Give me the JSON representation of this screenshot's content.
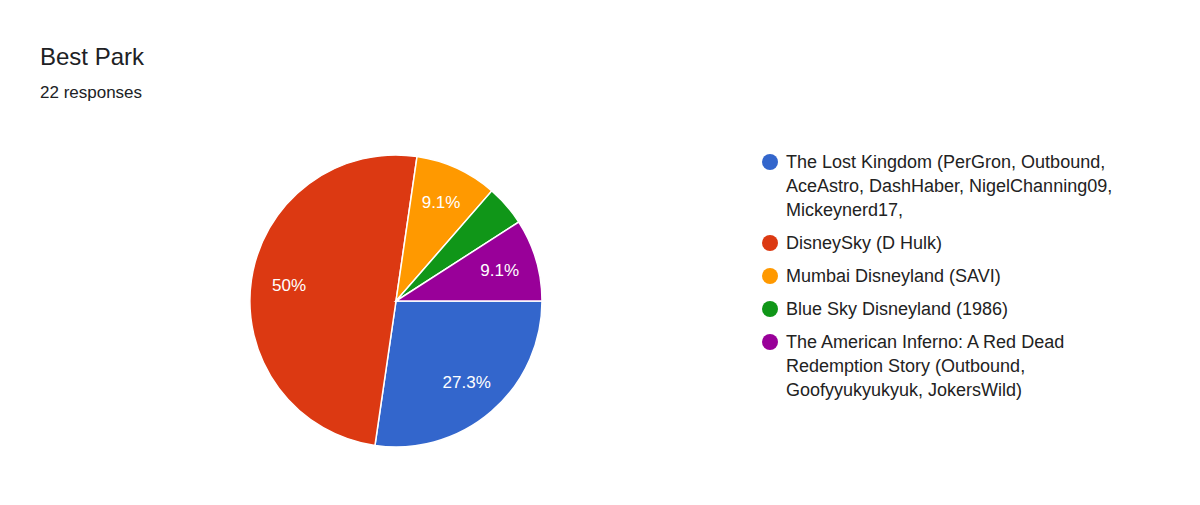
{
  "chart_data": {
    "type": "pie",
    "title": "Best Park",
    "subtitle": "22 responses",
    "categories": [
      "The Lost Kingdom (PerGron, Outbound, AceAstro, DashHaber, NigelChanning09, Mickeynerd17,",
      "DisneySky (D Hulk)",
      "Mumbai Disneyland (SAVI)",
      "Blue Sky Disneyland (1986)",
      "The American Inferno: A Red Dead Redemption Story (Outbound, Goofyyukyukyuk, JokersWild)"
    ],
    "values": [
      27.3,
      50,
      9.1,
      4.5,
      9.1
    ],
    "value_labels": [
      "27.3%",
      "50%",
      "9.1%",
      null,
      "9.1%"
    ],
    "colors": [
      "#3366cc",
      "#dc3912",
      "#ff9900",
      "#109618",
      "#990099"
    ],
    "data_labels": true,
    "legend": "right"
  }
}
